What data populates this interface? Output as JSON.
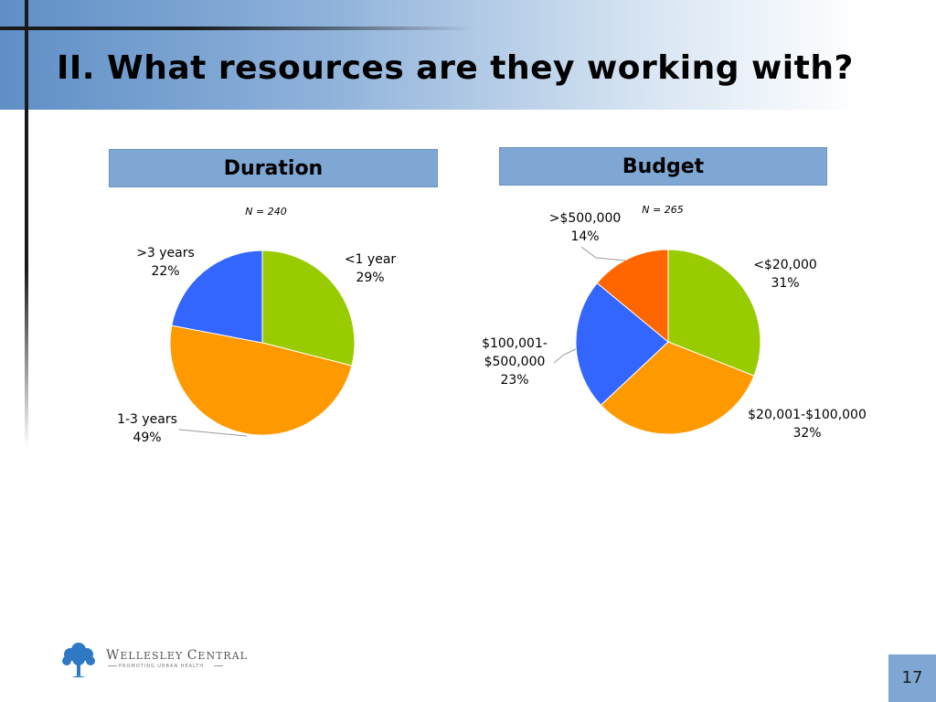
{
  "slide": {
    "title": "II. What resources are they working with?",
    "page_number": "17"
  },
  "logo": {
    "name_first": "W",
    "name_first_rest": "ELLESLEY",
    "name_second": "C",
    "name_second_rest": "ENTRAL",
    "tagline": "PROMOTING URBAN HEALTH",
    "tree_color": "#2f78c4"
  },
  "chart_data": [
    {
      "type": "pie",
      "title": "Duration",
      "note": "N = 240",
      "slices": [
        {
          "label_lines": [
            "<1 year"
          ],
          "pct_label": "29%",
          "value": 29,
          "color": "#99cc00"
        },
        {
          "label_lines": [
            "1-3 years"
          ],
          "pct_label": "49%",
          "value": 49,
          "color": "#ff9900"
        },
        {
          "label_lines": [
            ">3 years"
          ],
          "pct_label": "22%",
          "value": 22,
          "color": "#3366ff"
        }
      ]
    },
    {
      "type": "pie",
      "title": "Budget",
      "note": "N = 265",
      "slices": [
        {
          "label_lines": [
            "<$20,000"
          ],
          "pct_label": "31%",
          "value": 31,
          "color": "#99cc00"
        },
        {
          "label_lines": [
            "$20,001-$100,000"
          ],
          "pct_label": "32%",
          "value": 32,
          "color": "#ff9900"
        },
        {
          "label_lines": [
            "$100,001-",
            "$500,000"
          ],
          "pct_label": "23%",
          "value": 23,
          "color": "#3366ff"
        },
        {
          "label_lines": [
            ">$500,000"
          ],
          "pct_label": "14%",
          "value": 14,
          "color": "#ff6600"
        }
      ]
    }
  ]
}
